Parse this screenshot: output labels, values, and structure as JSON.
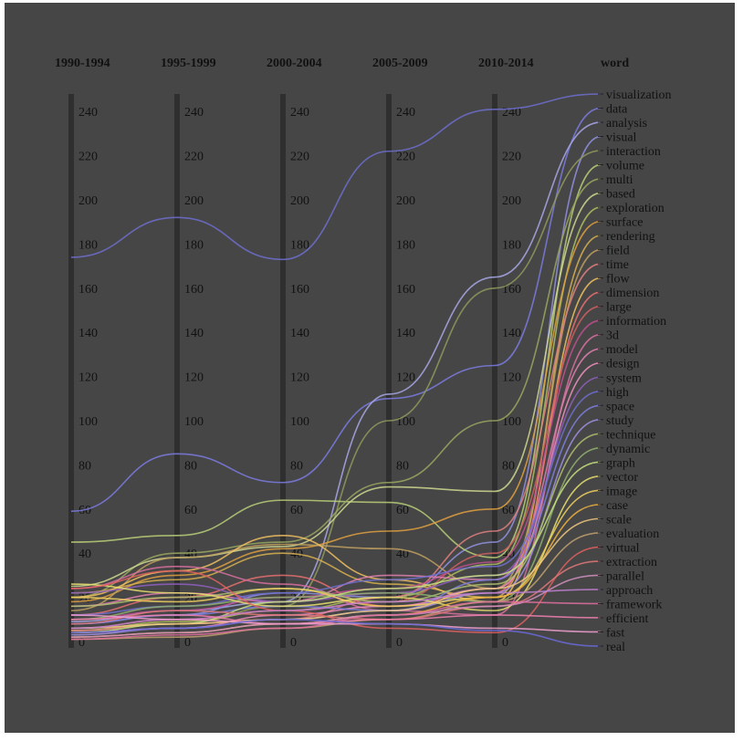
{
  "chart_data": {
    "type": "parallel-coordinates",
    "axes": [
      "1990-1994",
      "1995-1999",
      "2000-2004",
      "2005-2009",
      "2010-2014",
      "word"
    ],
    "ylim": [
      0,
      250
    ],
    "yticks": [
      0,
      20,
      40,
      60,
      80,
      100,
      120,
      140,
      160,
      180,
      200,
      220,
      240
    ],
    "series": [
      {
        "name": "visualization",
        "values": [
          174,
          192,
          173,
          222,
          241
        ],
        "color": "#6f6fcf"
      },
      {
        "name": "data",
        "values": [
          59,
          85,
          72,
          110,
          125
        ],
        "color": "#7b7be0"
      },
      {
        "name": "analysis",
        "values": [
          9,
          14,
          18,
          112,
          165
        ],
        "color": "#a8a8e8"
      },
      {
        "name": "visual",
        "values": [
          8,
          12,
          22,
          20,
          45
        ],
        "color": "#9090e0"
      },
      {
        "name": "interaction",
        "values": [
          5,
          8,
          16,
          100,
          160
        ],
        "color": "#8f9a5e"
      },
      {
        "name": "volume",
        "values": [
          45,
          48,
          64,
          63,
          38
        ],
        "color": "#b8cf78"
      },
      {
        "name": "multi",
        "values": [
          20,
          40,
          45,
          72,
          100
        ],
        "color": "#9aa860"
      },
      {
        "name": "based",
        "values": [
          25,
          38,
          43,
          70,
          68
        ],
        "color": "#d0d890"
      },
      {
        "name": "exploration",
        "values": [
          5,
          9,
          14,
          20,
          35
        ],
        "color": "#b0c060"
      },
      {
        "name": "surface",
        "values": [
          18,
          30,
          42,
          50,
          60
        ],
        "color": "#e0a040"
      },
      {
        "name": "rendering",
        "values": [
          22,
          28,
          40,
          26,
          20
        ],
        "color": "#d8b050"
      },
      {
        "name": "field",
        "values": [
          14,
          38,
          44,
          42,
          24
        ],
        "color": "#c0a060"
      },
      {
        "name": "time",
        "values": [
          5,
          8,
          10,
          20,
          50
        ],
        "color": "#e08080"
      },
      {
        "name": "flow",
        "values": [
          20,
          32,
          48,
          28,
          18
        ],
        "color": "#f0c060"
      },
      {
        "name": "dimension",
        "values": [
          12,
          20,
          30,
          16,
          22
        ],
        "color": "#e87070"
      },
      {
        "name": "large",
        "values": [
          6,
          10,
          14,
          18,
          40
        ],
        "color": "#d06060"
      },
      {
        "name": "information",
        "values": [
          10,
          14,
          20,
          24,
          36
        ],
        "color": "#c05090"
      },
      {
        "name": "3d",
        "values": [
          24,
          34,
          26,
          14,
          12
        ],
        "color": "#d870a0"
      },
      {
        "name": "model",
        "values": [
          16,
          22,
          18,
          30,
          28
        ],
        "color": "#e080b0"
      },
      {
        "name": "design",
        "values": [
          4,
          6,
          12,
          16,
          24
        ],
        "color": "#f090c0"
      },
      {
        "name": "system",
        "values": [
          22,
          26,
          18,
          22,
          30
        ],
        "color": "#9060c0"
      },
      {
        "name": "high",
        "values": [
          12,
          16,
          22,
          28,
          34
        ],
        "color": "#7070d0"
      },
      {
        "name": "space",
        "values": [
          8,
          12,
          16,
          14,
          28
        ],
        "color": "#8080e0"
      },
      {
        "name": "study",
        "values": [
          3,
          6,
          10,
          14,
          22
        ],
        "color": "#a090e0"
      },
      {
        "name": "technique",
        "values": [
          16,
          20,
          24,
          18,
          26
        ],
        "color": "#b0c070"
      },
      {
        "name": "dynamic",
        "values": [
          10,
          16,
          20,
          22,
          18
        ],
        "color": "#90b070"
      },
      {
        "name": "graph",
        "values": [
          4,
          8,
          18,
          24,
          30
        ],
        "color": "#c8e080"
      },
      {
        "name": "vector",
        "values": [
          26,
          22,
          16,
          20,
          14
        ],
        "color": "#e8e070"
      },
      {
        "name": "image",
        "values": [
          20,
          18,
          24,
          16,
          20
        ],
        "color": "#f0d060"
      },
      {
        "name": "case",
        "values": [
          2,
          4,
          8,
          12,
          20
        ],
        "color": "#f0b040"
      },
      {
        "name": "scale",
        "values": [
          6,
          8,
          10,
          14,
          24
        ],
        "color": "#f0c880"
      },
      {
        "name": "evaluation",
        "values": [
          1,
          2,
          6,
          10,
          18
        ],
        "color": "#c0a070"
      },
      {
        "name": "virtual",
        "values": [
          24,
          32,
          14,
          6,
          4
        ],
        "color": "#e06060"
      },
      {
        "name": "extraction",
        "values": [
          8,
          14,
          12,
          10,
          16
        ],
        "color": "#e07878"
      },
      {
        "name": "parallel",
        "values": [
          2,
          4,
          8,
          12,
          16
        ],
        "color": "#d090c0"
      },
      {
        "name": "approach",
        "values": [
          6,
          10,
          14,
          18,
          22
        ],
        "color": "#c080d0"
      },
      {
        "name": "framework",
        "values": [
          1,
          3,
          6,
          12,
          18
        ],
        "color": "#e070a0"
      },
      {
        "name": "efficient",
        "values": [
          10,
          12,
          8,
          10,
          12
        ],
        "color": "#f080b0"
      },
      {
        "name": "fast",
        "values": [
          12,
          10,
          8,
          8,
          6
        ],
        "color": "#f0a0d0"
      },
      {
        "name": "real",
        "values": [
          4,
          6,
          10,
          8,
          5
        ],
        "color": "#6a6ad8"
      }
    ]
  }
}
